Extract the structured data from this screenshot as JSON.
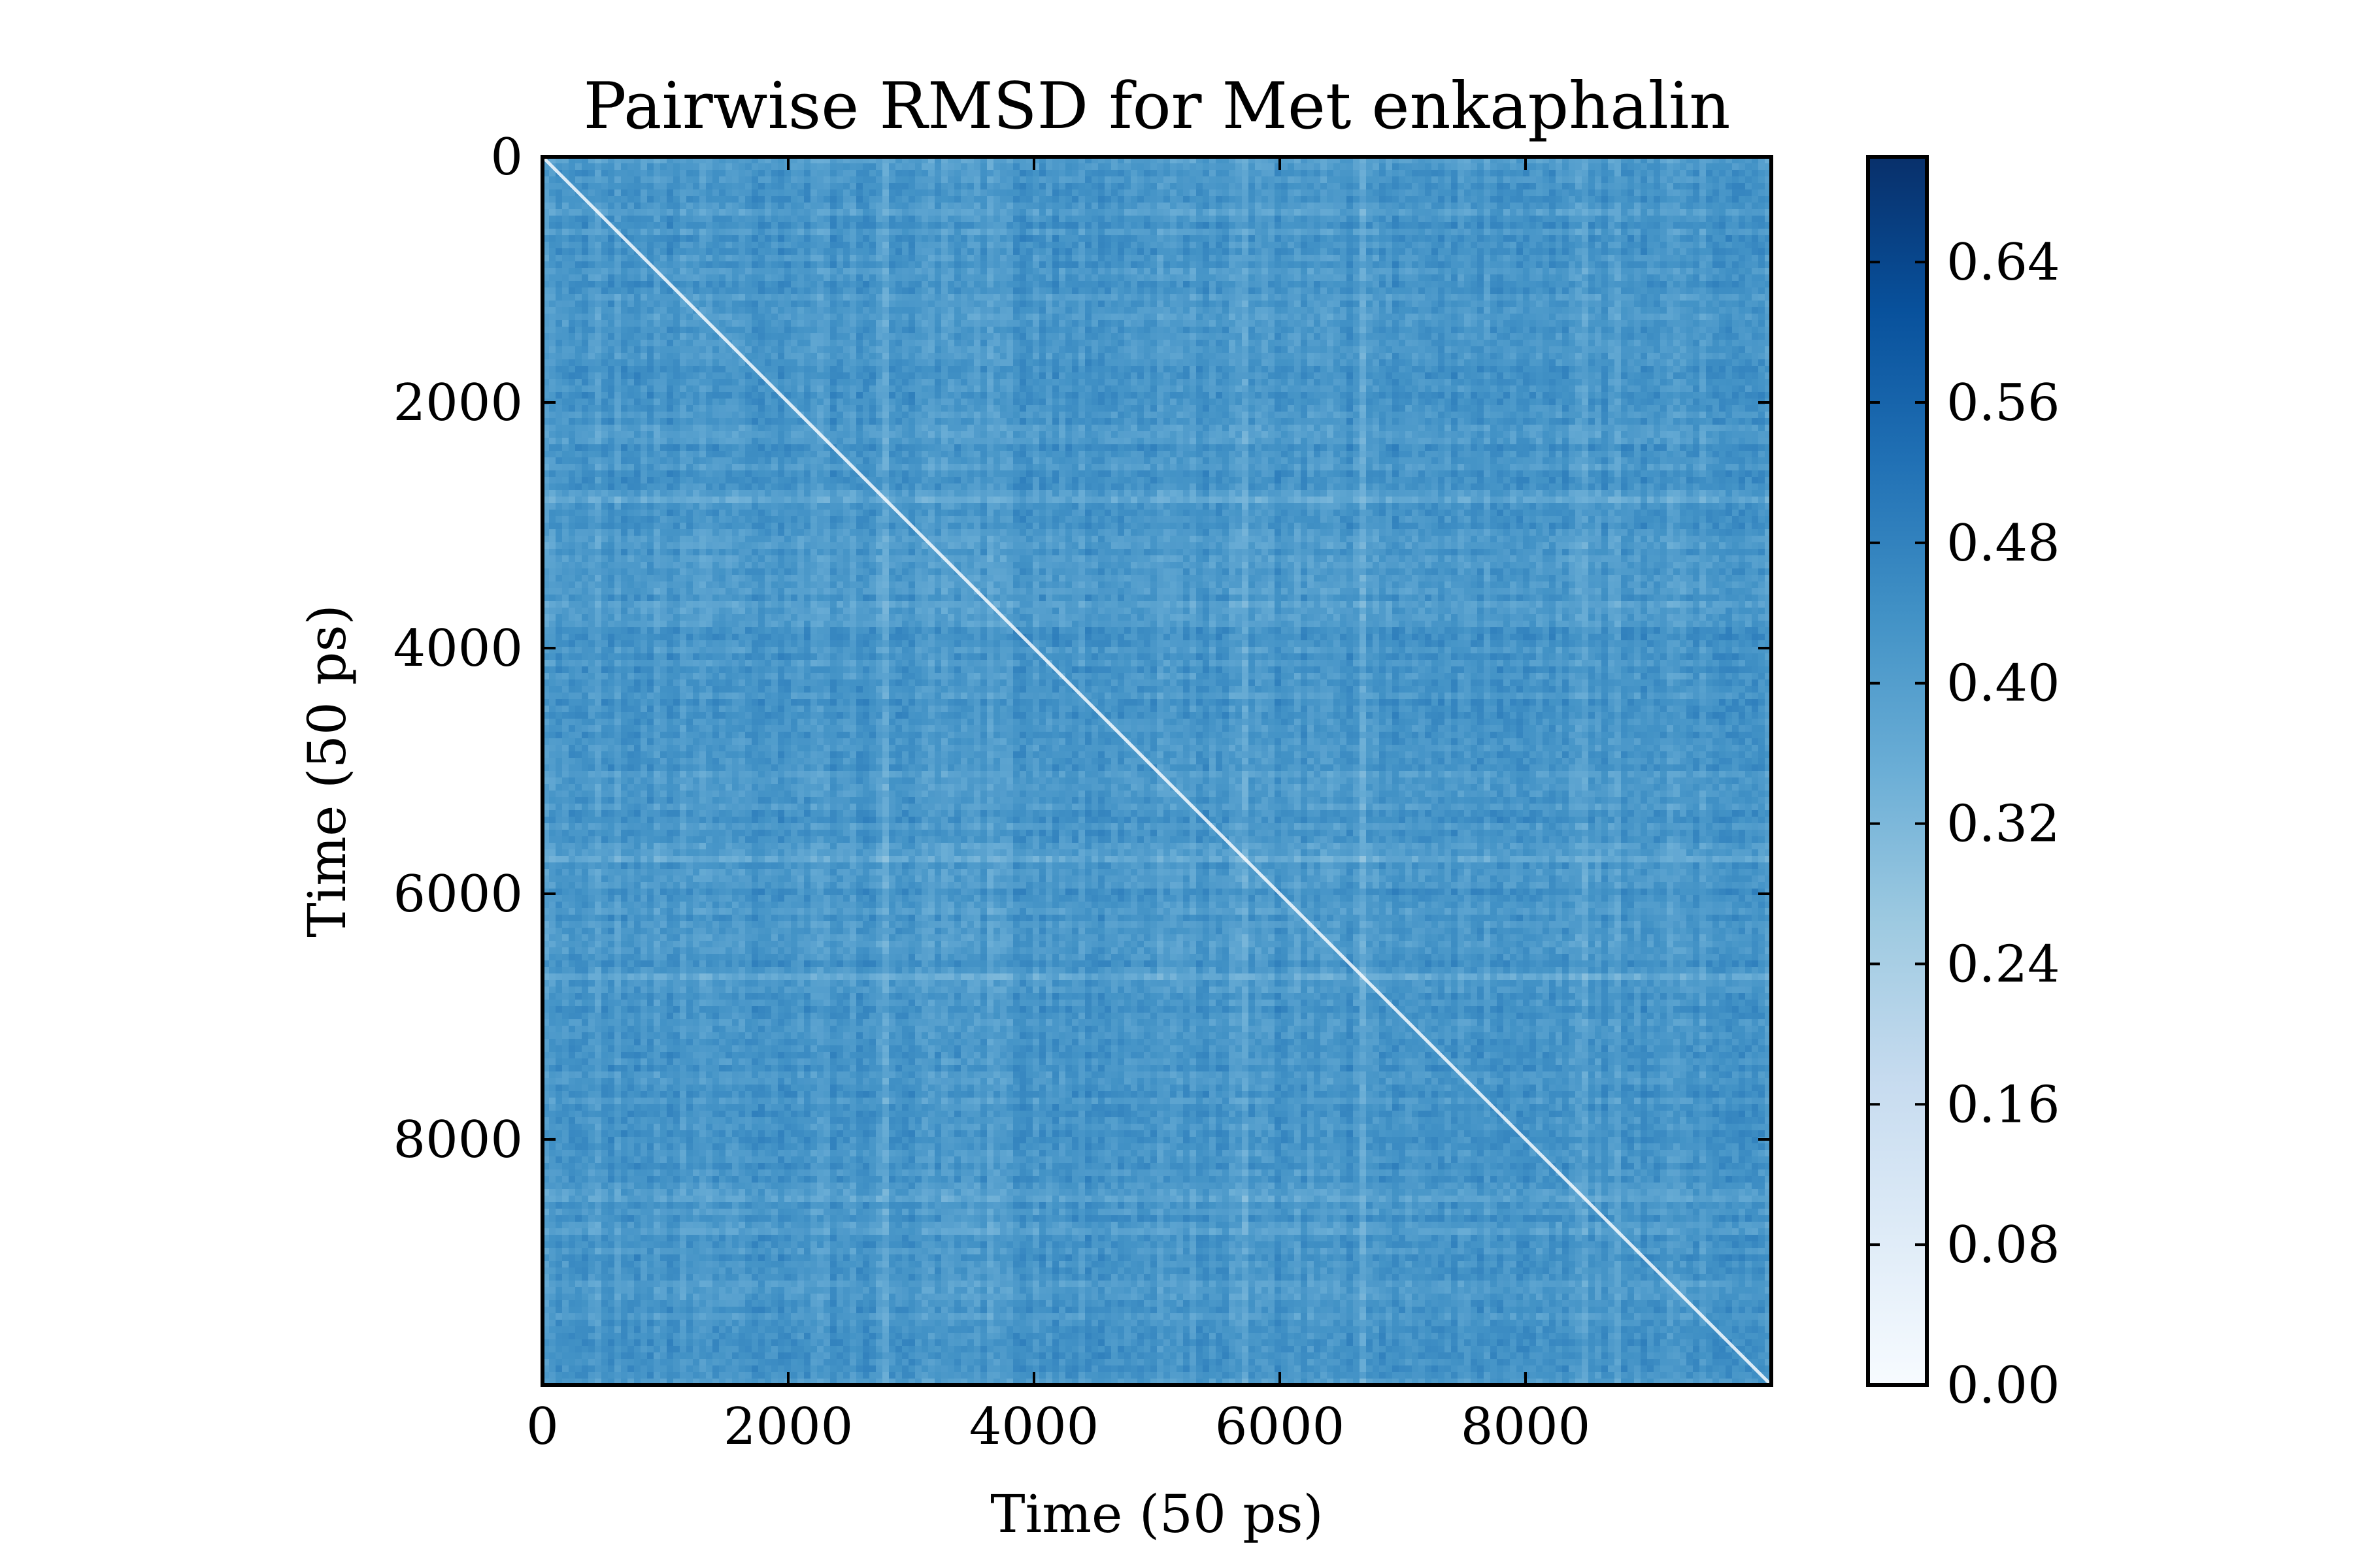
{
  "chart_data": {
    "type": "heatmap",
    "title": "Pairwise RMSD for Met enkaphalin",
    "xlabel": "Time (50 ps)",
    "ylabel": "Time (50 ps)",
    "xlim": [
      0,
      10000
    ],
    "ylim": [
      0,
      10000
    ],
    "y_axis_inverted": true,
    "x_ticks": [
      0,
      2000,
      4000,
      6000,
      8000
    ],
    "y_ticks": [
      0,
      2000,
      4000,
      6000,
      8000
    ],
    "x_tick_labels": [
      "0",
      "2000",
      "4000",
      "6000",
      "8000"
    ],
    "y_tick_labels": [
      "0",
      "2000",
      "4000",
      "6000",
      "8000"
    ],
    "colormap": "Blues",
    "colorbar": {
      "range": [
        0.0,
        0.7
      ],
      "ticks": [
        0.0,
        0.08,
        0.16,
        0.24,
        0.32,
        0.4,
        0.48,
        0.56,
        0.64
      ],
      "tick_labels": [
        "0.00",
        "0.08",
        "0.16",
        "0.24",
        "0.32",
        "0.40",
        "0.48",
        "0.56",
        "0.64"
      ],
      "colors": [
        "#f7fbff",
        "#deebf7",
        "#c6dbef",
        "#9ecae1",
        "#6baed6",
        "#4292c6",
        "#2171b5",
        "#08519c",
        "#08306b"
      ]
    },
    "matrix": {
      "size": 10000,
      "diagonal_value": 0.0,
      "typical_value": 0.42,
      "typical_range": [
        0.3,
        0.5
      ]
    }
  }
}
